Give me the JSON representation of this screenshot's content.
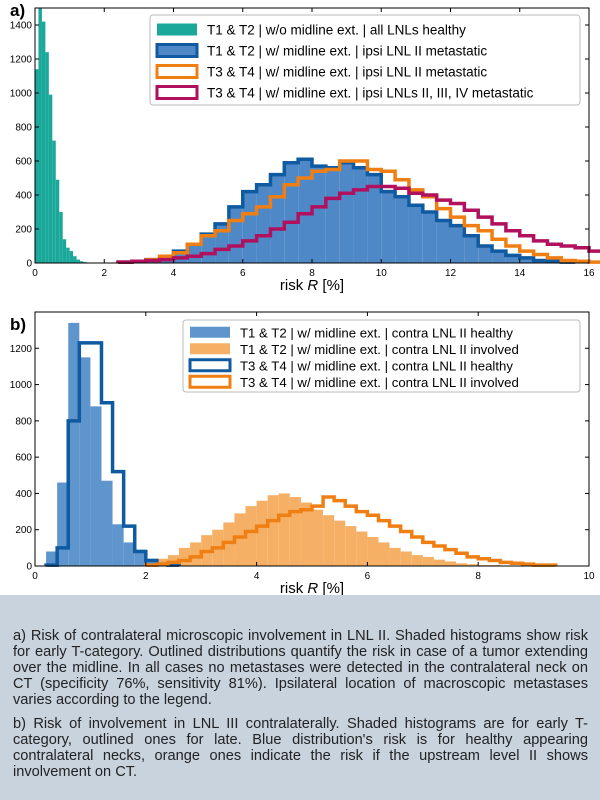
{
  "chart_data": [
    {
      "type": "histogram",
      "panel_label": "a)",
      "xlabel": "risk R [%]",
      "xlim": [
        0,
        16
      ],
      "ylim": [
        0,
        1500
      ],
      "xticks": [
        0,
        2,
        4,
        6,
        8,
        10,
        12,
        14,
        16
      ],
      "yticks": [
        0,
        200,
        400,
        600,
        800,
        1000,
        1200,
        1400
      ],
      "legend_position": "top-right",
      "series": [
        {
          "name": "T1 & T2 | w/o midline ext. | all LNLs healthy",
          "style": "filled",
          "color": "#1aa89b",
          "bin_start": 0,
          "bin_width": 0.1,
          "values": [
            1140,
            1500,
            1420,
            1240,
            990,
            720,
            490,
            300,
            140,
            90,
            70,
            40,
            20,
            10,
            5
          ]
        },
        {
          "name": "T1 & T2 | w/ midline ext. | ipsi LNL II metastatic",
          "style": "filled+outline",
          "color": "#0f5aa0",
          "fill": "#4f88c6",
          "bin_start": 2.4,
          "bin_width": 0.4,
          "values": [
            5,
            10,
            20,
            35,
            70,
            110,
            170,
            230,
            330,
            420,
            460,
            520,
            590,
            610,
            570,
            560,
            590,
            560,
            520,
            420,
            390,
            340,
            300,
            250,
            220,
            160,
            100,
            70,
            45,
            30,
            15,
            10,
            5
          ]
        },
        {
          "name": "T3 & T4 | w/ midline ext. | ipsi LNL II metastatic",
          "style": "outline",
          "color": "#f07f13",
          "bin_start": 2.4,
          "bin_width": 0.4,
          "values": [
            5,
            10,
            20,
            40,
            60,
            110,
            160,
            190,
            250,
            290,
            330,
            390,
            460,
            500,
            540,
            550,
            600,
            600,
            550,
            540,
            490,
            430,
            390,
            320,
            270,
            220,
            190,
            140,
            100,
            70,
            50,
            30,
            15,
            10,
            5
          ]
        },
        {
          "name": "T3 & T4 | w/ midline ext. | ipsi LNLs II, III, IV metastatic",
          "style": "outline",
          "color": "#b0105e",
          "bin_start": 2.4,
          "bin_width": 0.4,
          "values": [
            5,
            10,
            15,
            20,
            30,
            40,
            55,
            80,
            100,
            130,
            160,
            200,
            240,
            290,
            330,
            380,
            410,
            430,
            450,
            450,
            440,
            410,
            400,
            370,
            350,
            310,
            270,
            230,
            190,
            160,
            130,
            110,
            100,
            90,
            70,
            70
          ]
        }
      ]
    },
    {
      "type": "histogram",
      "panel_label": "b)",
      "xlabel": "risk R [%]",
      "xlim": [
        0,
        10
      ],
      "ylim": [
        0,
        1400
      ],
      "xticks": [
        0,
        2,
        4,
        6,
        8,
        10
      ],
      "yticks": [
        0,
        200,
        400,
        600,
        800,
        1000,
        1200
      ],
      "legend_position": "top-right",
      "series": [
        {
          "name": "T1 & T2 | w/ midline ext. | contra LNL II healthy",
          "style": "filled",
          "color": "#5e95cc",
          "bin_start": 0.2,
          "bin_width": 0.2,
          "values": [
            80,
            460,
            1340,
            1150,
            880,
            470,
            230,
            130,
            90,
            40,
            10,
            5
          ]
        },
        {
          "name": "T1 & T2 | w/ midline ext. | contra LNL II involved",
          "style": "filled",
          "color": "#f6b066",
          "bin_start": 2.0,
          "bin_width": 0.2,
          "values": [
            10,
            40,
            60,
            100,
            130,
            170,
            200,
            240,
            290,
            330,
            360,
            390,
            400,
            380,
            350,
            310,
            280,
            250,
            220,
            190,
            160,
            130,
            100,
            80,
            60,
            50,
            35,
            25,
            15,
            10,
            5,
            5
          ]
        },
        {
          "name": "T3 & T4 | w/ midline ext. | contra LNL II healthy",
          "style": "outline",
          "color": "#0f5aa0",
          "bin_start": 0.2,
          "bin_width": 0.2,
          "values": [
            5,
            100,
            800,
            1230,
            1230,
            900,
            520,
            220,
            80,
            30,
            10,
            5
          ]
        },
        {
          "name": "T3 & T4 | w/ midline ext. | contra LNL II involved",
          "style": "outline",
          "color": "#f07f13",
          "bin_start": 2.0,
          "bin_width": 0.2,
          "values": [
            5,
            10,
            20,
            30,
            50,
            80,
            100,
            130,
            160,
            190,
            220,
            250,
            280,
            300,
            310,
            330,
            380,
            360,
            330,
            300,
            280,
            250,
            220,
            190,
            160,
            130,
            110,
            90,
            70,
            50,
            40,
            30,
            20,
            15,
            10,
            5,
            5
          ]
        }
      ]
    }
  ],
  "caption": {
    "a": "a) Risk of contralateral microscopic involvement in LNL II. Shaded histograms show risk for early T-category. Outlined distributions quantify the risk in case of a tumor extending over the midline. In all cases no metastases were detected in the contralateral neck on CT (specificity 76%, sensitivity 81%). Ipsilateral location of macroscopic metastases varies according to the legend.",
    "b": "b) Risk of involvement in LNL III contralaterally. Shaded histograms are for early T-category, outlined ones for late. Blue distribution's risk is for healthy appearing contralateral necks, orange ones indicate the risk if the upstream level II shows involvement on CT."
  }
}
